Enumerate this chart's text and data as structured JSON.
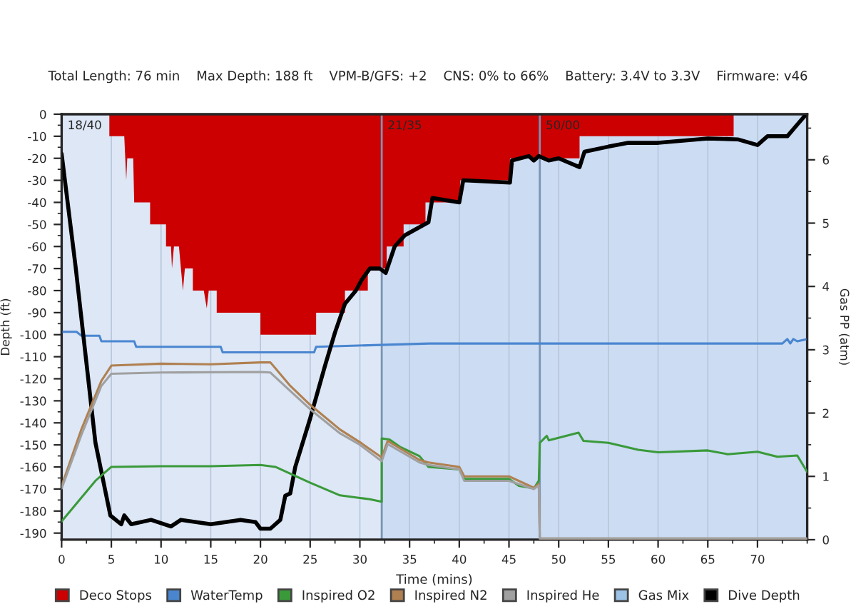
{
  "chart_data": {
    "type": "line",
    "title": "Total Length: 76 min    Max Depth: 188 ft    VPM-B/GFS: +2    CNS: 0% to 66%    Battery: 3.4V to 3.3V    Firmware: v46",
    "xlabel": "Time (mins)",
    "ylabel": "Depth (ft)",
    "y2label": "Gas PP (atm)",
    "xlim": [
      0,
      75
    ],
    "xticks": [
      0,
      5,
      10,
      15,
      20,
      25,
      30,
      35,
      40,
      45,
      50,
      55,
      60,
      65,
      70
    ],
    "ylim": [
      -193,
      0
    ],
    "yticks": [
      0,
      -10,
      -20,
      -30,
      -40,
      -50,
      -60,
      -70,
      -80,
      -90,
      -100,
      -110,
      -120,
      -130,
      -140,
      -150,
      -160,
      -170,
      -180,
      -190
    ],
    "y2lim": [
      0,
      6.72
    ],
    "y2ticks": [
      0,
      1,
      2,
      3,
      4,
      5,
      6
    ],
    "grid": "x",
    "legend": "bottom",
    "line_style": "solid",
    "marker": "none",
    "annotations": [
      "18/40",
      {
        "text": "21/35",
        "x": 32.2
      },
      {
        "text": "50/00",
        "x": 48.1
      }
    ],
    "ref_lines": [
      {
        "axis": "x",
        "value": 32.2,
        "color": "#7a94b4"
      },
      {
        "axis": "x",
        "value": 48.1,
        "color": "#7a94b4"
      }
    ],
    "bands": [
      {
        "axis": "x",
        "from": 32.2,
        "to": 75,
        "color": "#cbdcf3"
      }
    ],
    "series": [
      {
        "name": "Deco Stops",
        "type": "area",
        "color": "#cc0000",
        "x": [
          4.8,
          4.8,
          6.3,
          6.5,
          6.6,
          7.2,
          7.3,
          8.9,
          8.9,
          10.5,
          10.5,
          11.0,
          11.1,
          11.3,
          11.8,
          12.2,
          12.4,
          13.2,
          13.2,
          14.3,
          14.6,
          14.8,
          15.6,
          15.6,
          20.0,
          20.0,
          25.6,
          25.6,
          28.5,
          28.5,
          30.8,
          30.8,
          32.7,
          32.7,
          34.4,
          34.4,
          36.6,
          36.6,
          40.1,
          40.1,
          45.1,
          45.1,
          52.1,
          52.1,
          67.6,
          67.6
        ],
        "values": [
          0,
          -10,
          -10,
          -30,
          -20,
          -20,
          -40,
          -40,
          -50,
          -50,
          -60,
          -60,
          -70,
          -60,
          -60,
          -80,
          -70,
          -70,
          -80,
          -80,
          -88,
          -80,
          -80,
          -90,
          -90,
          -100,
          -100,
          -90,
          -90,
          -80,
          -80,
          -70,
          -70,
          -60,
          -60,
          -50,
          -50,
          -40,
          -40,
          -30,
          -30,
          -20,
          -20,
          -10,
          -10,
          0
        ]
      },
      {
        "name": "WaterTemp",
        "color": "#4a86d0",
        "x": [
          0,
          1.5,
          2.0,
          3.8,
          4.0,
          7.3,
          7.5,
          16.0,
          16.2,
          25.4,
          25.6,
          37,
          72.5,
          73,
          73.3,
          73.6,
          74,
          75
        ],
        "values": [
          -98.7,
          -98.7,
          -100.5,
          -100.5,
          -103,
          -103,
          -105.5,
          -105.5,
          -108,
          -108,
          -105.5,
          -104,
          -104,
          -102,
          -104,
          -102,
          -103,
          -102
        ]
      },
      {
        "name": "Inspired O2",
        "axis": "y2",
        "color": "#3a9a3a",
        "x": [
          0,
          3.4,
          5,
          10,
          15,
          20,
          21.5,
          25,
          28,
          30,
          31,
          32.2,
          32.2,
          33,
          34,
          36,
          36.9,
          40,
          40.5,
          45,
          46,
          47.5,
          48,
          48.1,
          48.8,
          49,
          52,
          52.5,
          55,
          58,
          60,
          65,
          67,
          70,
          72,
          74,
          75
        ],
        "values": [
          0.29,
          0.93,
          1.15,
          1.16,
          1.16,
          1.18,
          1.15,
          0.9,
          0.7,
          0.66,
          0.64,
          0.6,
          1.6,
          1.58,
          1.47,
          1.32,
          1.15,
          1.11,
          0.96,
          0.96,
          0.85,
          0.81,
          0.93,
          1.53,
          1.64,
          1.57,
          1.69,
          1.56,
          1.53,
          1.42,
          1.38,
          1.41,
          1.35,
          1.39,
          1.31,
          1.33,
          1.07
        ]
      },
      {
        "name": "Inspired N2",
        "axis": "y2",
        "color": "#b08050",
        "x": [
          0,
          2,
          4,
          5,
          10,
          15,
          20,
          21,
          23,
          25,
          28,
          30,
          32.2,
          32.8,
          36,
          36.9,
          40,
          40.5,
          45,
          47.5,
          48,
          48.1,
          75
        ],
        "values": [
          0.85,
          1.75,
          2.51,
          2.75,
          2.78,
          2.77,
          2.8,
          2.8,
          2.43,
          2.13,
          1.74,
          1.54,
          1.3,
          1.56,
          1.26,
          1.22,
          1.15,
          1.0,
          1.0,
          0.82,
          0.88,
          0.02,
          0.02
        ]
      },
      {
        "name": "Inspired He",
        "axis": "y2",
        "color": "#a0a0a0",
        "x": [
          0,
          2,
          4,
          5,
          10,
          20,
          21,
          23,
          25,
          28,
          30,
          32.2,
          32.8,
          36,
          36.9,
          40,
          40.5,
          45,
          47.5,
          48,
          48.1,
          75
        ],
        "values": [
          0.81,
          1.66,
          2.43,
          2.62,
          2.64,
          2.65,
          2.64,
          2.35,
          2.06,
          1.68,
          1.5,
          1.24,
          1.51,
          1.22,
          1.18,
          1.11,
          0.93,
          0.93,
          0.8,
          0.86,
          0.02,
          0.02
        ]
      },
      {
        "name": "Gas Mix",
        "color": "#9cc3e6"
      },
      {
        "name": "Dive Depth",
        "color": "#000000",
        "x": [
          0,
          1.4,
          3.4,
          4.9,
          6,
          6.3,
          7,
          9,
          11,
          12,
          15,
          18,
          19.5,
          20,
          21,
          22,
          22.5,
          23,
          23.5,
          25,
          26.5,
          27.5,
          28.5,
          29.6,
          30.2,
          31,
          32,
          32.6,
          33.5,
          34.5,
          36.9,
          37.3,
          40,
          40.4,
          45.1,
          45.3,
          47,
          47.5,
          48,
          49,
          50,
          52.1,
          52.6,
          55,
          57,
          60,
          65,
          68,
          70,
          71,
          73,
          74,
          74.9
        ],
        "values": [
          -18,
          -69,
          -149,
          -182,
          -186,
          -182,
          -186,
          -184,
          -187,
          -184,
          -186,
          -184,
          -185,
          -188,
          -188,
          -184,
          -173,
          -172,
          -160,
          -138,
          -114,
          -99,
          -86,
          -80,
          -75,
          -70,
          -70,
          -72,
          -60,
          -55,
          -49,
          -38,
          -40,
          -30,
          -31,
          -21,
          -19,
          -21,
          -19,
          -21,
          -20,
          -24,
          -17,
          -14.7,
          -13,
          -13,
          -11,
          -11.4,
          -14,
          -10,
          -10,
          -4.7,
          0
        ]
      }
    ]
  }
}
